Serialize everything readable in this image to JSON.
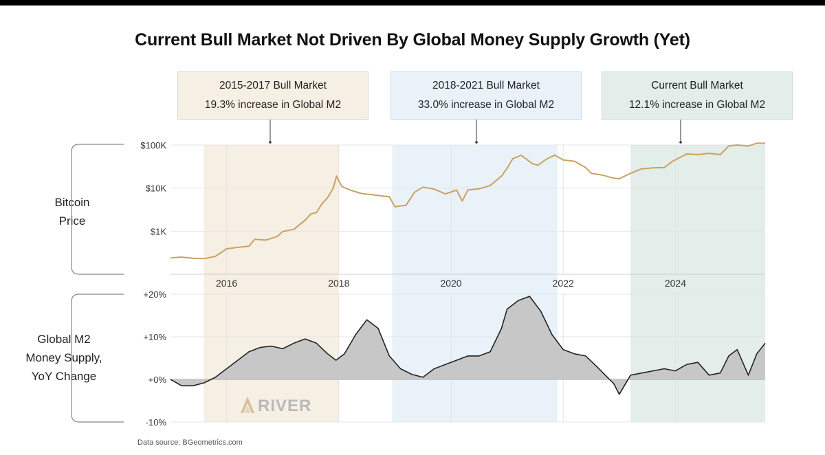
{
  "title": "Current Bull Market Not Driven By Global Money Supply Growth (Yet)",
  "source": "Data source: BGeometrics.com",
  "watermark": "RIVER",
  "annotations": [
    {
      "name": "2015-2017 Bull Market",
      "text": "19.3% increase in Global M2",
      "color": "#f6efe4"
    },
    {
      "name": "2018-2021 Bull Market",
      "text": "33.0% increase in Global M2",
      "color": "#e9f2f8"
    },
    {
      "name": "Current Bull Market",
      "text": "12.1% increase in Global M2",
      "color": "#e3ede9"
    }
  ],
  "panel_labels": {
    "price": [
      "Bitcoin",
      "Price"
    ],
    "m2": [
      "Global M2",
      "Money Supply,",
      "YoY Change"
    ]
  },
  "colors": {
    "price_line": "#c9a25f",
    "m2_fill": "#c7c7c7",
    "m2_line": "#222222"
  },
  "chart_data": [
    {
      "type": "line",
      "name": "Bitcoin Price",
      "yscale": "log",
      "ytick_labels": [
        "$1K",
        "$10K",
        "$100K"
      ],
      "yticks": [
        1000,
        10000,
        100000
      ],
      "ylim": [
        100,
        100000
      ],
      "xlim": [
        2015.0,
        2025.6
      ],
      "xtick_labels": [
        "2016",
        "2018",
        "2020",
        "2022",
        "2024"
      ],
      "xticks": [
        2016,
        2018,
        2020,
        2022,
        2024
      ],
      "shaded_periods": [
        [
          2015.6,
          2018.0
        ],
        [
          2018.95,
          2021.9
        ],
        [
          2023.2,
          2025.6
        ]
      ],
      "x": [
        2015.0,
        2015.2,
        2015.4,
        2015.6,
        2015.8,
        2016.0,
        2016.2,
        2016.4,
        2016.5,
        2016.7,
        2016.9,
        2017.0,
        2017.2,
        2017.4,
        2017.5,
        2017.6,
        2017.7,
        2017.8,
        2017.9,
        2017.96,
        2018.05,
        2018.2,
        2018.4,
        2018.6,
        2018.8,
        2018.9,
        2019.0,
        2019.2,
        2019.35,
        2019.5,
        2019.7,
        2019.9,
        2020.1,
        2020.2,
        2020.3,
        2020.5,
        2020.7,
        2020.9,
        2021.0,
        2021.1,
        2021.25,
        2021.45,
        2021.55,
        2021.7,
        2021.85,
        2022.0,
        2022.2,
        2022.4,
        2022.5,
        2022.7,
        2022.9,
        2023.0,
        2023.2,
        2023.4,
        2023.6,
        2023.8,
        2023.95,
        2024.2,
        2024.4,
        2024.6,
        2024.8,
        2024.95,
        2025.1,
        2025.3,
        2025.45,
        2025.6
      ],
      "y": [
        240,
        250,
        235,
        230,
        260,
        390,
        420,
        450,
        650,
        620,
        750,
        980,
        1100,
        1800,
        2500,
        2700,
        4300,
        6000,
        10000,
        19000,
        11000,
        9000,
        7500,
        7000,
        6500,
        6300,
        3700,
        4000,
        8000,
        10500,
        9500,
        7300,
        9000,
        5000,
        9000,
        9600,
        11500,
        19000,
        29000,
        48000,
        58000,
        37000,
        34000,
        47000,
        58000,
        45000,
        42000,
        30000,
        22000,
        20000,
        17000,
        16500,
        22000,
        28000,
        29500,
        30000,
        42000,
        62000,
        60000,
        64000,
        60000,
        95000,
        100000,
        95000,
        110000,
        110000
      ]
    },
    {
      "type": "area",
      "name": "Global M2 Money Supply, YoY Change",
      "ytick_labels": [
        "+20%",
        "+10%",
        "+0%",
        "-10%"
      ],
      "yticks": [
        20,
        10,
        0,
        -10
      ],
      "ylim": [
        -10,
        20
      ],
      "xlim": [
        2015.0,
        2025.6
      ],
      "x": [
        2015.0,
        2015.2,
        2015.4,
        2015.6,
        2015.8,
        2016.0,
        2016.2,
        2016.4,
        2016.6,
        2016.8,
        2017.0,
        2017.2,
        2017.4,
        2017.6,
        2017.8,
        2017.95,
        2018.1,
        2018.3,
        2018.5,
        2018.7,
        2018.9,
        2019.1,
        2019.3,
        2019.5,
        2019.7,
        2019.9,
        2020.1,
        2020.3,
        2020.5,
        2020.7,
        2020.9,
        2021.0,
        2021.2,
        2021.4,
        2021.6,
        2021.8,
        2022.0,
        2022.2,
        2022.4,
        2022.6,
        2022.75,
        2022.9,
        2023.0,
        2023.2,
        2023.4,
        2023.6,
        2023.8,
        2024.0,
        2024.2,
        2024.4,
        2024.6,
        2024.8,
        2024.95,
        2025.1,
        2025.3,
        2025.45,
        2025.6
      ],
      "y": [
        0,
        -1.5,
        -1.5,
        -0.8,
        0.5,
        2.5,
        4.5,
        6.5,
        7.5,
        7.8,
        7.2,
        8.5,
        9.5,
        8.5,
        6.0,
        4.5,
        6.0,
        10.5,
        14.0,
        12.0,
        5.5,
        2.5,
        1.2,
        0.5,
        2.5,
        3.5,
        4.5,
        5.5,
        5.5,
        6.5,
        12.0,
        16.5,
        18.5,
        19.5,
        16.0,
        10.5,
        7.0,
        6.0,
        5.5,
        3.0,
        1.0,
        -1.0,
        -3.5,
        1.0,
        1.5,
        2.0,
        2.5,
        2.0,
        3.5,
        4.0,
        1.0,
        1.5,
        5.5,
        7.0,
        1.0,
        6.0,
        8.5
      ]
    }
  ]
}
